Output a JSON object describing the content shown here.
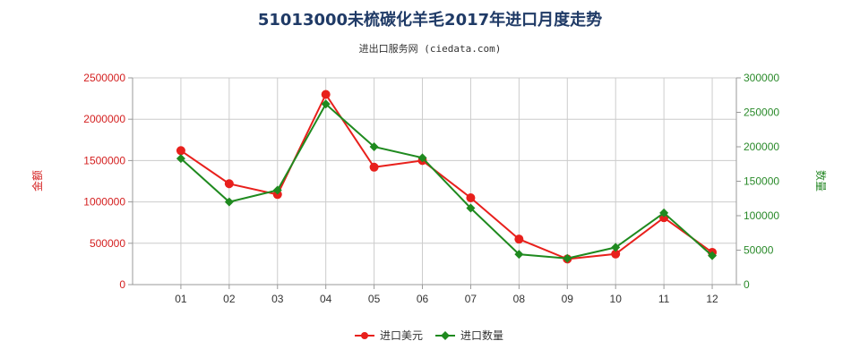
{
  "header": {
    "title": "51013000未梳碳化羊毛2017年进口月度走势",
    "subtitle": "进出口服务网 (ciedata.com)"
  },
  "colors": {
    "usd": "#e8201c",
    "qty": "#1f8a1f",
    "grid": "#cccccc",
    "axis_left": "#d42020",
    "axis_right": "#2a8a2a"
  },
  "chart_data": {
    "type": "line",
    "categories": [
      "01",
      "02",
      "03",
      "04",
      "05",
      "06",
      "07",
      "08",
      "09",
      "10",
      "11",
      "12"
    ],
    "series": [
      {
        "name": "进口美元",
        "axis": "left",
        "values": [
          1620000,
          1220000,
          1090000,
          2300000,
          1420000,
          1500000,
          1050000,
          550000,
          310000,
          370000,
          810000,
          390000
        ]
      },
      {
        "name": "进口数量",
        "axis": "right",
        "values": [
          183000,
          120000,
          137000,
          262000,
          200000,
          184000,
          111000,
          44000,
          38000,
          54000,
          104000,
          42000
        ]
      }
    ],
    "ylabel_left": "金额",
    "ylabel_right": "数量",
    "ylim_left": [
      0,
      2500000
    ],
    "ylim_right": [
      0,
      300000
    ],
    "yticks_left": [
      "0",
      "500000",
      "1000000",
      "1500000",
      "2000000",
      "2500000"
    ],
    "yticks_right": [
      "0",
      "50000",
      "100000",
      "150000",
      "200000",
      "250000",
      "300000"
    ],
    "grid": true,
    "legend_position": "bottom-center"
  }
}
